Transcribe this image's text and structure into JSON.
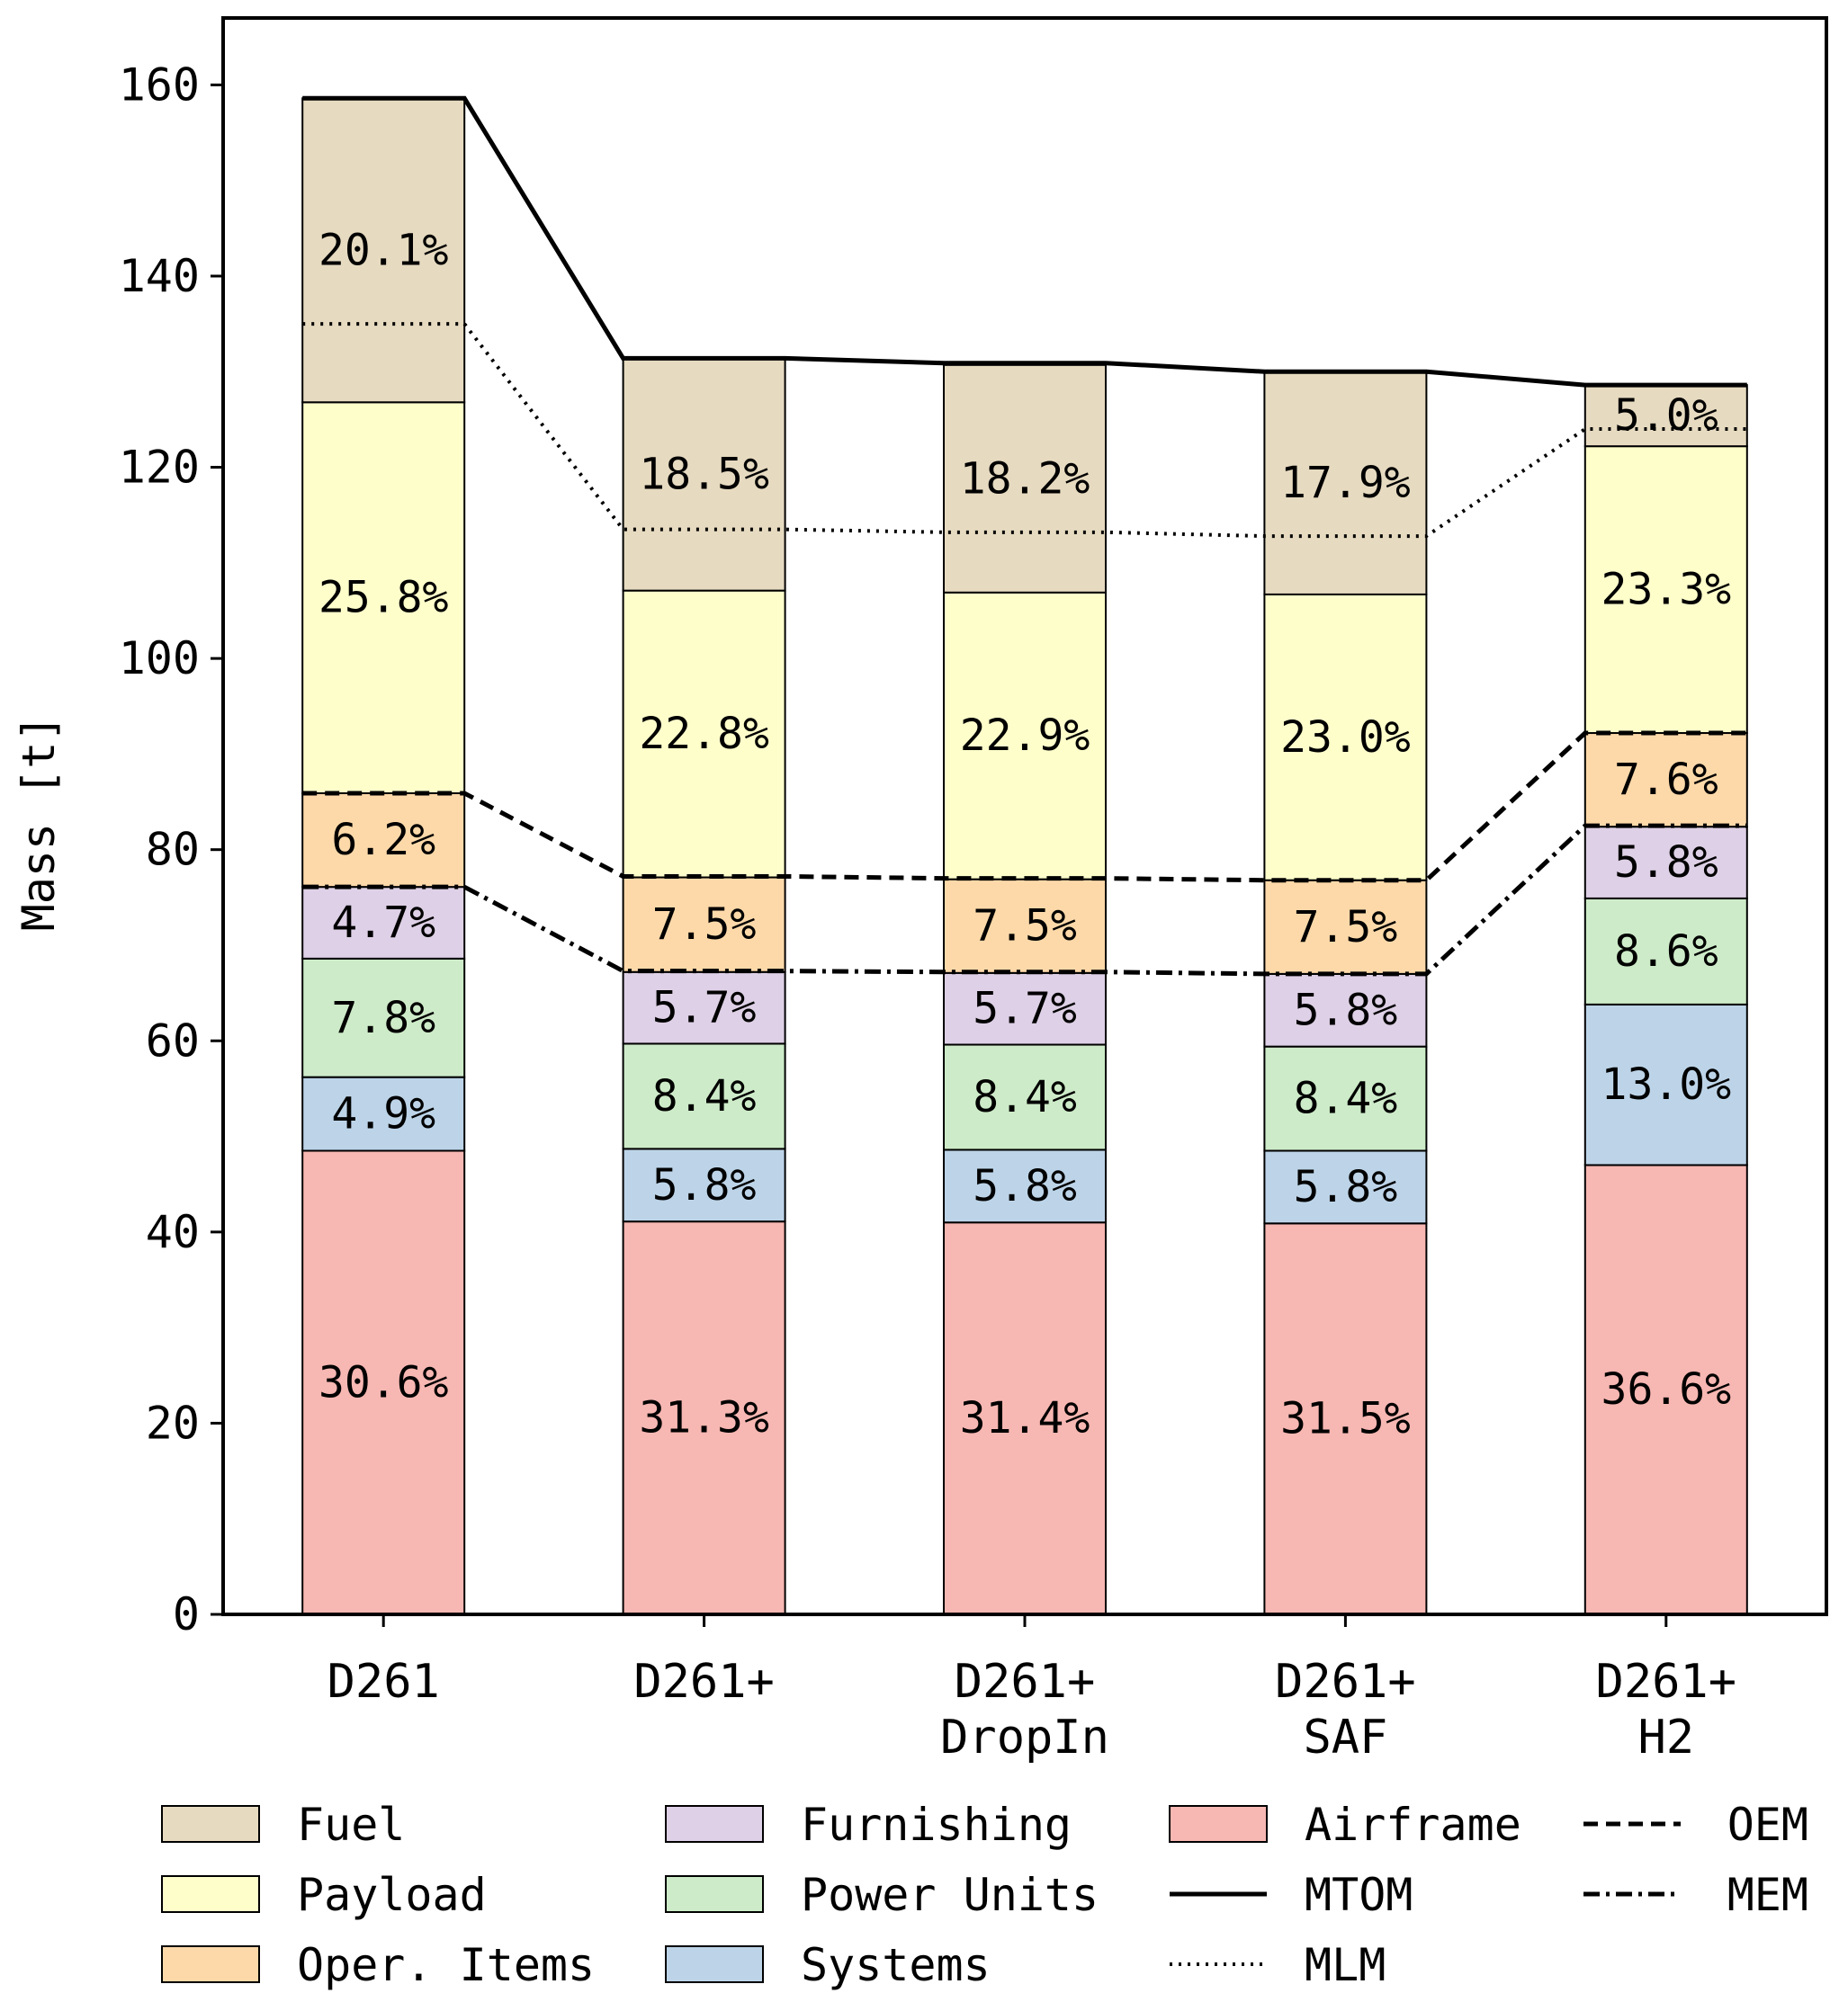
{
  "chart_data": {
    "type": "bar",
    "stacked": true,
    "ylabel": "Mass [t]",
    "ylim": [
      0,
      167
    ],
    "yticks": [
      0,
      20,
      40,
      60,
      80,
      100,
      120,
      140,
      160
    ],
    "categories": [
      {
        "lines": [
          "D261"
        ]
      },
      {
        "lines": [
          "D261+"
        ]
      },
      {
        "lines": [
          "D261+",
          "DropIn"
        ]
      },
      {
        "lines": [
          "D261+",
          "SAF"
        ]
      },
      {
        "lines": [
          "D261+",
          "H2"
        ]
      }
    ],
    "series": [
      {
        "name": "Airframe",
        "color": "#f7b7b2",
        "values": [
          48.5,
          41.1,
          41.0,
          40.9,
          47.0
        ],
        "labels": [
          "30.6%",
          "31.3%",
          "31.4%",
          "31.5%",
          "36.6%"
        ]
      },
      {
        "name": "Systems",
        "color": "#bdd4e8",
        "values": [
          7.7,
          7.6,
          7.6,
          7.6,
          16.8
        ],
        "labels": [
          "4.9%",
          "5.8%",
          "5.8%",
          "5.8%",
          "13.0%"
        ]
      },
      {
        "name": "Power Units",
        "color": "#cdebc8",
        "values": [
          12.4,
          11.0,
          11.0,
          10.9,
          11.1
        ],
        "labels": [
          "7.8%",
          "8.4%",
          "8.4%",
          "8.4%",
          "8.6%"
        ]
      },
      {
        "name": "Furnishing",
        "color": "#ded0e6",
        "values": [
          7.5,
          7.5,
          7.5,
          7.6,
          7.5
        ],
        "labels": [
          "4.7%",
          "5.7%",
          "5.7%",
          "5.8%",
          "5.8%"
        ]
      },
      {
        "name": "Oper. Items",
        "color": "#fdd9a9",
        "values": [
          9.8,
          9.9,
          9.8,
          9.8,
          9.8
        ],
        "labels": [
          "6.2%",
          "7.5%",
          "7.5%",
          "7.5%",
          "7.6%"
        ]
      },
      {
        "name": "Payload",
        "color": "#fefecb",
        "values": [
          40.9,
          30.0,
          30.0,
          29.9,
          30.0
        ],
        "labels": [
          "25.8%",
          "22.8%",
          "22.9%",
          "23.0%",
          "23.3%"
        ]
      },
      {
        "name": "Fuel",
        "color": "#e6dac0",
        "values": [
          31.8,
          24.3,
          23.8,
          23.3,
          6.4
        ],
        "labels": [
          "20.1%",
          "18.5%",
          "18.2%",
          "17.9%",
          "5.0%"
        ]
      }
    ],
    "lines": [
      {
        "name": "MTOM",
        "dash": "solid",
        "values": [
          158.6,
          131.4,
          130.9,
          130.0,
          128.6
        ]
      },
      {
        "name": "MLM",
        "dash": "dotted",
        "values": [
          135.0,
          113.5,
          113.2,
          112.8,
          124.0
        ]
      },
      {
        "name": "OEM",
        "dash": "dashed",
        "values": [
          85.9,
          77.2,
          77.0,
          76.8,
          92.2
        ]
      },
      {
        "name": "MEM",
        "dash": "dashdot",
        "values": [
          76.1,
          67.3,
          67.2,
          67.0,
          82.5
        ]
      }
    ],
    "legend": {
      "placement": "bottom",
      "columns": [
        [
          "Fuel",
          "Payload",
          "Oper. Items"
        ],
        [
          "Furnishing",
          "Power Units",
          "Systems"
        ],
        [
          "Airframe",
          "MTOM",
          "MLM"
        ],
        [
          "OEM",
          "MEM"
        ]
      ]
    }
  }
}
